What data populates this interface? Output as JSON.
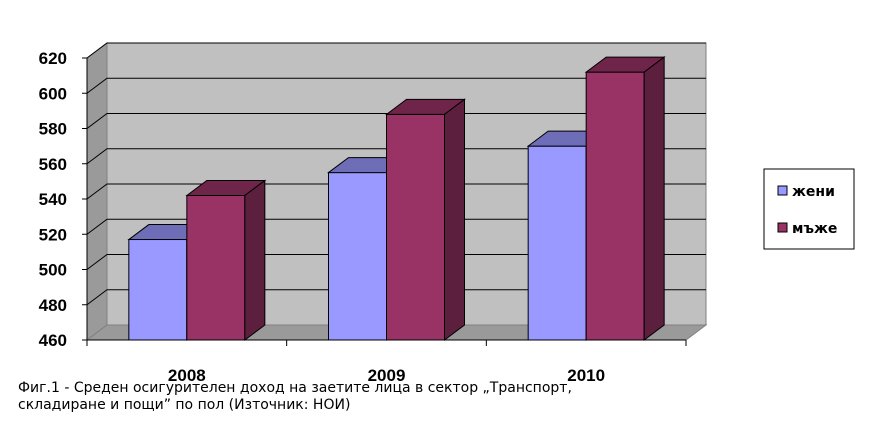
{
  "chart_data": {
    "type": "bar",
    "categories": [
      "2008",
      "2009",
      "2010"
    ],
    "series": [
      {
        "name": "жени",
        "values": [
          517,
          555,
          570
        ],
        "color": "#9999ff"
      },
      {
        "name": "мъже",
        "values": [
          542,
          588,
          612
        ],
        "color": "#993366"
      }
    ],
    "ylim": [
      460,
      620
    ],
    "yticks": [
      460,
      480,
      500,
      520,
      540,
      560,
      580,
      600,
      620
    ],
    "grid": true,
    "legend": "right",
    "style": "3d-clustered-column",
    "wall_color": "#c0c0c0"
  },
  "caption": {
    "line1": "Фиг.1 - Среден осигурителен доход на заетите лица в сектор „Транспорт,",
    "line2": "складиране и пощи” по пол (Източник: НОИ)"
  }
}
